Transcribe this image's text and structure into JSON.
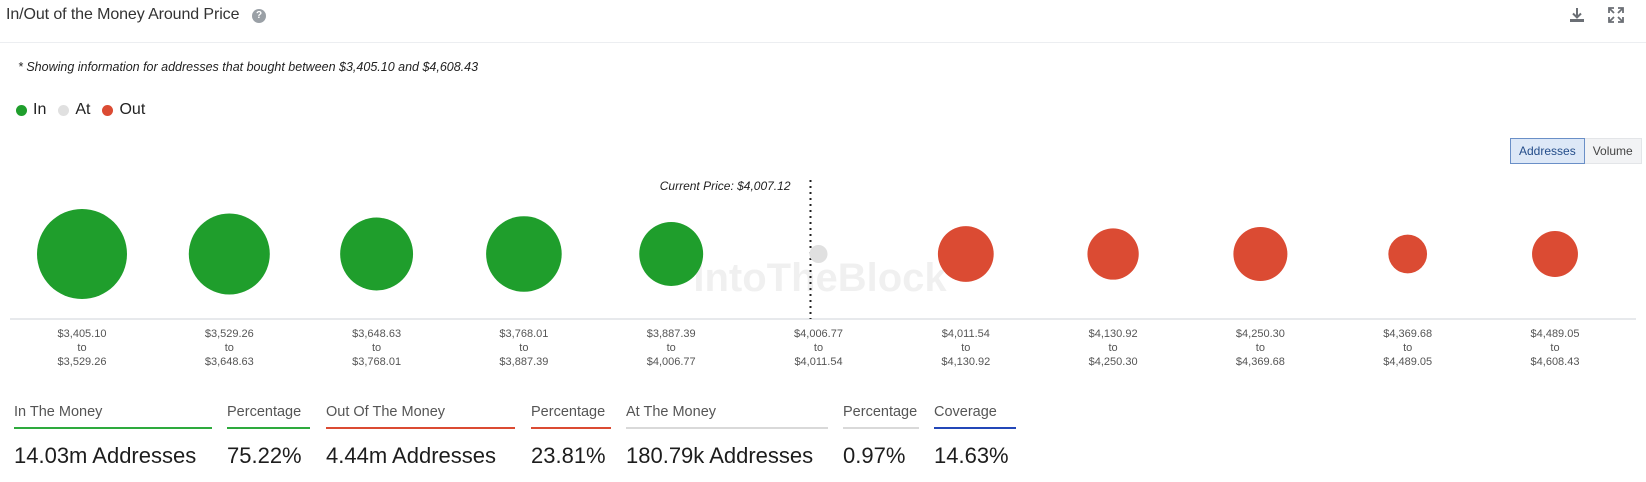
{
  "header": {
    "title": "In/Out of the Money Around Price",
    "help_icon": "question-circle-icon",
    "download_icon": "download-icon",
    "expand_icon": "expand-icon"
  },
  "note": "* Showing information for addresses that bought between $3,405.10 and $4,608.43",
  "legend": [
    {
      "label": "In",
      "color": "#1f9e2c"
    },
    {
      "label": "At",
      "color": "#e0e0e0"
    },
    {
      "label": "Out",
      "color": "#db4b33"
    }
  ],
  "toggle": {
    "addresses_label": "Addresses",
    "volume_label": "Volume",
    "active": "Addresses"
  },
  "chart_data": {
    "type": "bubble",
    "current_price_label": "Current Price: $4,007.12",
    "watermark": "IntoTheBlock",
    "colors": {
      "in": "#1f9e2c",
      "at": "#e0e0e0",
      "out": "#db4b33"
    },
    "current_price_after_bin_index": 4,
    "bins": [
      {
        "low": "$3,405.10",
        "high": "$3,529.26",
        "status": "in",
        "relative_size": 1.0
      },
      {
        "low": "$3,529.26",
        "high": "$3,648.63",
        "status": "in",
        "relative_size": 0.9
      },
      {
        "low": "$3,648.63",
        "high": "$3,768.01",
        "status": "in",
        "relative_size": 0.81
      },
      {
        "low": "$3,768.01",
        "high": "$3,887.39",
        "status": "in",
        "relative_size": 0.84
      },
      {
        "low": "$3,887.39",
        "high": "$4,006.77",
        "status": "in",
        "relative_size": 0.71
      },
      {
        "low": "$4,006.77",
        "high": "$4,011.54",
        "status": "at",
        "relative_size": 0.2
      },
      {
        "low": "$4,011.54",
        "high": "$4,130.92",
        "status": "out",
        "relative_size": 0.62
      },
      {
        "low": "$4,130.92",
        "high": "$4,250.30",
        "status": "out",
        "relative_size": 0.57
      },
      {
        "low": "$4,250.30",
        "high": "$4,369.68",
        "status": "out",
        "relative_size": 0.6
      },
      {
        "low": "$4,369.68",
        "high": "$4,489.05",
        "status": "out",
        "relative_size": 0.43
      },
      {
        "low": "$4,489.05",
        "high": "$4,608.43",
        "status": "out",
        "relative_size": 0.51
      }
    ],
    "range_separator": "to"
  },
  "stats": [
    {
      "label": "In The Money",
      "value": "14.03m Addresses",
      "color": "#2eaa3d"
    },
    {
      "label": "Percentage",
      "value": "75.22%",
      "color": "#2eaa3d"
    },
    {
      "label": "Out Of The Money",
      "value": "4.44m Addresses",
      "color": "#db4b33"
    },
    {
      "label": "Percentage",
      "value": "23.81%",
      "color": "#db4b33"
    },
    {
      "label": "At The Money",
      "value": "180.79k Addresses",
      "color": "#d9d9d9"
    },
    {
      "label": "Percentage",
      "value": "0.97%",
      "color": "#d9d9d9"
    },
    {
      "label": "Coverage",
      "value": "14.63%",
      "color": "#2347b8"
    }
  ]
}
